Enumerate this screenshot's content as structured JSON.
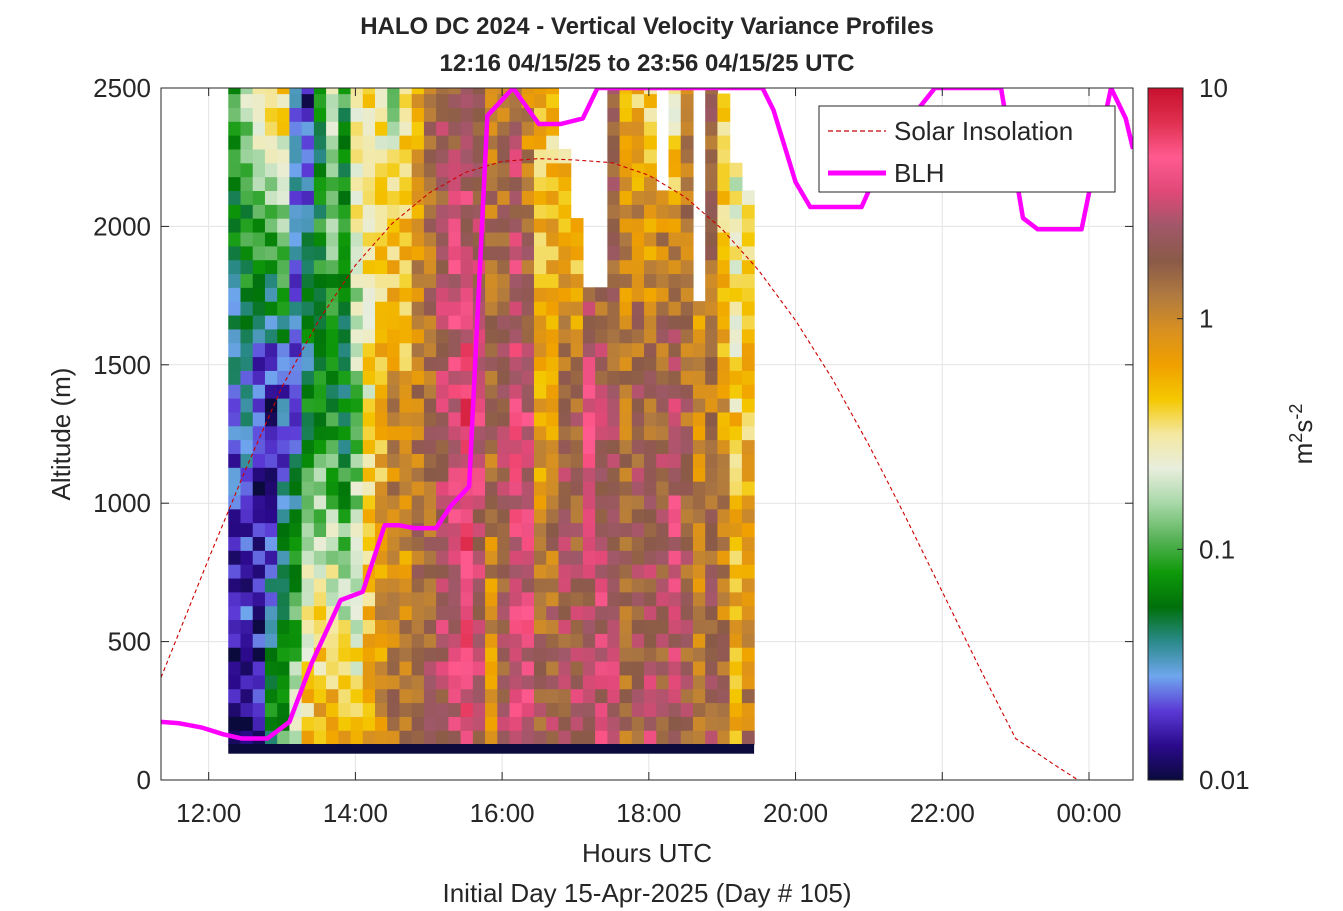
{
  "figure": {
    "title_line1": "HALO DC 2024 - Vertical Velocity Variance Profiles",
    "title_line2": "12:16 04/15/25 to 23:56 04/15/25  UTC",
    "xlabel": "Hours UTC",
    "xlabel2": "Initial Day 15-Apr-2025 (Day # 105)",
    "ylabel": "Altitude (m)",
    "colorbar_label_base": "m",
    "colorbar_label_sup1": "2",
    "colorbar_label_mid": "s",
    "colorbar_label_sup2": "-2",
    "legend": [
      {
        "label": "Solar Insolation",
        "color": "#cc0000",
        "style": "dashed"
      },
      {
        "label": "BLH",
        "color": "#ff00ff",
        "style": "solid"
      }
    ]
  },
  "chart_data": {
    "type": "heatmap",
    "x_unit": "hours UTC (24 = 00:00 next day)",
    "x_range": [
      11.35,
      24.6
    ],
    "y_range": [
      0,
      2500
    ],
    "x_ticks": [
      12,
      14,
      16,
      18,
      20,
      22,
      24
    ],
    "x_tick_labels": [
      "12:00",
      "14:00",
      "16:00",
      "18:00",
      "20:00",
      "22:00",
      "00:00"
    ],
    "y_ticks": [
      0,
      500,
      1000,
      1500,
      2000,
      2500
    ],
    "y_tick_labels": [
      "0",
      "500",
      "1000",
      "1500",
      "2000",
      "2500"
    ],
    "colorbar": {
      "scale": "log",
      "range": [
        0.01,
        10
      ],
      "ticks": [
        0.01,
        0.1,
        1,
        10
      ],
      "tick_labels": [
        "0.01",
        "0.1",
        "1",
        "10"
      ],
      "colormap": [
        "#0a0a3c",
        "#2b0a8c",
        "#5b3ad6",
        "#6fa6ee",
        "#2a8a8a",
        "#00700a",
        "#0f9a0a",
        "#5ab45a",
        "#a8d8a8",
        "#e8eedd",
        "#f4e8a0",
        "#f4c800",
        "#f0a000",
        "#d89020",
        "#b07a40",
        "#8a5a48",
        "#a05868",
        "#e04878",
        "#ff5a90",
        "#e03050",
        "#c8102e"
      ]
    },
    "time_range_hours": [
      12.267,
      23.933
    ],
    "bin_width_hours": 0.1667,
    "gate_height_m": 50,
    "lowest_gate_top_m": 130,
    "heatmap_note": "log10 of vertical velocity variance per profile (columns) and altitude gate (rows); values read approximately from colors",
    "column_profiles_log10": [
      {
        "bottom": -2.0,
        "mid": -1.6,
        "top": -1.0,
        "ceiling": 2500
      },
      {
        "bottom": -1.9,
        "mid": -1.5,
        "top": -0.8,
        "ceiling": 2500
      },
      {
        "bottom": -1.8,
        "mid": -1.8,
        "top": -0.4,
        "ceiling": 2500
      },
      {
        "bottom": -1.2,
        "mid": -1.9,
        "top": -0.3,
        "ceiling": 2500
      },
      {
        "bottom": -1.0,
        "mid": -1.7,
        "top": -0.3,
        "ceiling": 2500
      },
      {
        "bottom": -0.7,
        "mid": -1.6,
        "top": -1.5,
        "ceiling": 2500
      },
      {
        "bottom": -0.3,
        "mid": -1.2,
        "top": -1.8,
        "ceiling": 2500
      },
      {
        "bottom": -0.2,
        "mid": -1.1,
        "top": -1.2,
        "ceiling": 2500
      },
      {
        "bottom": -0.1,
        "mid": -1.2,
        "top": -0.7,
        "ceiling": 2500
      },
      {
        "bottom": -0.3,
        "mid": -1.3,
        "top": -1.1,
        "ceiling": 2500
      },
      {
        "bottom": -0.4,
        "mid": -0.9,
        "top": -0.4,
        "ceiling": 2500
      },
      {
        "bottom": -0.2,
        "mid": -0.5,
        "top": -0.5,
        "ceiling": 2500
      },
      {
        "bottom": 0.0,
        "mid": -0.3,
        "top": -0.6,
        "ceiling": 2500
      },
      {
        "bottom": 0.1,
        "mid": 0.0,
        "top": -0.8,
        "ceiling": 2500
      },
      {
        "bottom": 0.1,
        "mid": -0.2,
        "top": -0.4,
        "ceiling": 2500
      },
      {
        "bottom": 0.2,
        "mid": 0.1,
        "top": -0.2,
        "ceiling": 2500
      },
      {
        "bottom": 0.3,
        "mid": 0.2,
        "top": 0.1,
        "ceiling": 2500
      },
      {
        "bottom": 0.4,
        "mid": 0.4,
        "top": 0.3,
        "ceiling": 2500
      },
      {
        "bottom": 0.5,
        "mid": 0.6,
        "top": 0.3,
        "ceiling": 2500
      },
      {
        "bottom": 0.6,
        "mid": 0.7,
        "top": 0.3,
        "ceiling": 2500
      },
      {
        "bottom": 0.4,
        "mid": 0.5,
        "top": 0.2,
        "ceiling": 2500
      },
      {
        "bottom": -0.2,
        "mid": 0.2,
        "top": 0.1,
        "ceiling": 2500
      },
      {
        "bottom": 0.3,
        "mid": 0.3,
        "top": 0.1,
        "ceiling": 2500
      },
      {
        "bottom": 0.5,
        "mid": 0.6,
        "top": 0.3,
        "ceiling": 2500
      },
      {
        "bottom": 0.6,
        "mid": 0.5,
        "top": -0.1,
        "ceiling": 2500
      },
      {
        "bottom": 0.3,
        "mid": -0.2,
        "top": -0.3,
        "ceiling": 2500
      },
      {
        "bottom": 0.4,
        "mid": -0.1,
        "top": -0.4,
        "ceiling": 2500
      },
      {
        "bottom": 0.3,
        "mid": 0.3,
        "top": -0.6,
        "ceiling": 2250
      },
      {
        "bottom": 0.4,
        "mid": 0.2,
        "top": -0.8,
        "ceiling": 2000
      },
      {
        "bottom": 0.3,
        "mid": 0.6,
        "top": -0.3,
        "ceiling": 1750
      },
      {
        "bottom": 0.5,
        "mid": 0.4,
        "top": -0.2,
        "ceiling": 1750
      },
      {
        "bottom": 0.4,
        "mid": 0.3,
        "top": 0.2,
        "ceiling": 2500
      },
      {
        "bottom": 0.2,
        "mid": 0.1,
        "top": -0.2,
        "ceiling": 2500
      },
      {
        "bottom": 0.3,
        "mid": 0.3,
        "top": -0.3,
        "ceiling": 2500
      },
      {
        "bottom": 0.4,
        "mid": 0.2,
        "top": -0.4,
        "ceiling": 2500
      },
      {
        "bottom": 0.3,
        "mid": 0.3,
        "top": -0.2,
        "ceiling": 2100
      },
      {
        "bottom": 0.4,
        "mid": 0.5,
        "top": -0.6,
        "ceiling": 2500
      },
      {
        "bottom": 0.3,
        "mid": 0.2,
        "top": 0.0,
        "ceiling": 2500
      },
      {
        "bottom": 0.2,
        "mid": -0.1,
        "top": -0.3,
        "ceiling": 1700
      },
      {
        "bottom": 0.3,
        "mid": 0.1,
        "top": 0.2,
        "ceiling": 2500
      },
      {
        "bottom": 0.2,
        "mid": -0.1,
        "top": -0.5,
        "ceiling": 2450
      },
      {
        "bottom": -0.2,
        "mid": -0.4,
        "top": -0.7,
        "ceiling": 2200
      },
      {
        "bottom": 0.1,
        "mid": -0.3,
        "top": -0.6,
        "ceiling": 2100
      }
    ],
    "series": [
      {
        "name": "Solar Insolation",
        "style": "dashed",
        "x": [
          11.35,
          12.0,
          12.5,
          13.0,
          13.5,
          14.0,
          14.5,
          15.0,
          15.5,
          16.0,
          16.5,
          17.0,
          17.5,
          18.0,
          18.5,
          19.0,
          19.5,
          20.0,
          20.5,
          21.0,
          21.5,
          22.0,
          22.5,
          23.0,
          23.5,
          23.85,
          24.6
        ],
        "y": [
          370,
          800,
          1120,
          1420,
          1660,
          1860,
          2010,
          2120,
          2195,
          2235,
          2245,
          2240,
          2230,
          2185,
          2105,
          1990,
          1840,
          1660,
          1450,
          1210,
          950,
          680,
          410,
          150,
          60,
          0,
          0
        ]
      },
      {
        "name": "BLH",
        "style": "solid",
        "x": [
          11.35,
          11.6,
          11.9,
          12.2,
          12.45,
          12.8,
          13.1,
          13.4,
          13.8,
          14.1,
          14.4,
          14.6,
          14.8,
          15.1,
          15.3,
          15.55,
          15.8,
          16.15,
          16.5,
          16.8,
          17.1,
          17.3,
          19.55,
          19.7,
          20.0,
          20.2,
          20.5,
          20.9,
          21.2,
          21.6,
          21.9,
          22.4,
          22.8,
          23.1,
          23.3,
          23.6,
          23.9,
          24.1,
          24.3,
          24.5,
          24.6
        ],
        "y": [
          210,
          205,
          190,
          165,
          150,
          150,
          210,
          420,
          650,
          680,
          920,
          920,
          910,
          910,
          990,
          1060,
          2400,
          2500,
          2370,
          2370,
          2390,
          2500,
          2500,
          2420,
          2160,
          2070,
          2070,
          2070,
          2250,
          2400,
          2500,
          2500,
          2500,
          2030,
          1990,
          1990,
          1990,
          2250,
          2500,
          2390,
          2280
        ]
      }
    ],
    "xlabel": "Hours UTC",
    "ylabel": "Altitude (m)",
    "grid": true,
    "legend_position": "top-right"
  }
}
